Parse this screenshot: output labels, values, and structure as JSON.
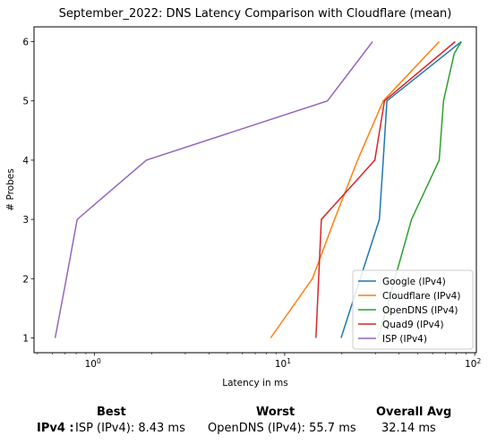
{
  "chart_data": {
    "type": "line",
    "title": "September_2022: DNS Latency Comparison with Cloudflare (mean)",
    "xlabel": "Latency in ms",
    "ylabel": "# Probes",
    "xscale": "log",
    "xlim": [
      0.48,
      102
    ],
    "ylim": [
      0.75,
      6.25
    ],
    "xticks": [
      {
        "value": 1,
        "base": "10",
        "exp": "0"
      },
      {
        "value": 10,
        "base": "10",
        "exp": "1"
      },
      {
        "value": 100,
        "base": "10",
        "exp": "2"
      }
    ],
    "yticks": [
      1,
      2,
      3,
      4,
      5,
      6
    ],
    "grid": false,
    "legend_position": "bottom-right",
    "series": [
      {
        "name": "Google (IPv4)",
        "color": "#1f77b4",
        "x": [
          19.8,
          31.5,
          33.0,
          34.5,
          85.0
        ],
        "y": [
          1,
          3,
          4,
          5,
          6
        ]
      },
      {
        "name": "Cloudflare (IPv4)",
        "color": "#ff7f0e",
        "x": [
          8.43,
          14.0,
          18.3,
          24.2,
          33.0,
          65.0
        ],
        "y": [
          1,
          2,
          3,
          4,
          5,
          6
        ]
      },
      {
        "name": "OpenDNS (IPv4)",
        "color": "#2ca02c",
        "x": [
          31.0,
          38.0,
          46.5,
          65.0,
          68.5,
          78.0,
          85.0
        ],
        "y": [
          1,
          2,
          3,
          4,
          5,
          5.8,
          6
        ]
      },
      {
        "name": "Quad9 (IPv4)",
        "color": "#d62728",
        "x": [
          14.6,
          15.6,
          29.8,
          33.5,
          79.0
        ],
        "y": [
          1,
          3,
          4,
          5,
          6
        ]
      },
      {
        "name": "ISP (IPv4)",
        "color": "#9467bd",
        "x": [
          0.62,
          0.71,
          0.81,
          1.87,
          16.8,
          29.0
        ],
        "y": [
          1,
          2,
          3,
          4,
          5,
          6
        ]
      }
    ]
  },
  "summary": {
    "headers": {
      "best": "Best",
      "worst": "Worst",
      "overall": "Overall Avg"
    },
    "row_label": "IPv4 :",
    "best": "ISP (IPv4): 8.43 ms",
    "worst": "OpenDNS (IPv4): 55.7 ms",
    "overall": "32.14 ms"
  }
}
